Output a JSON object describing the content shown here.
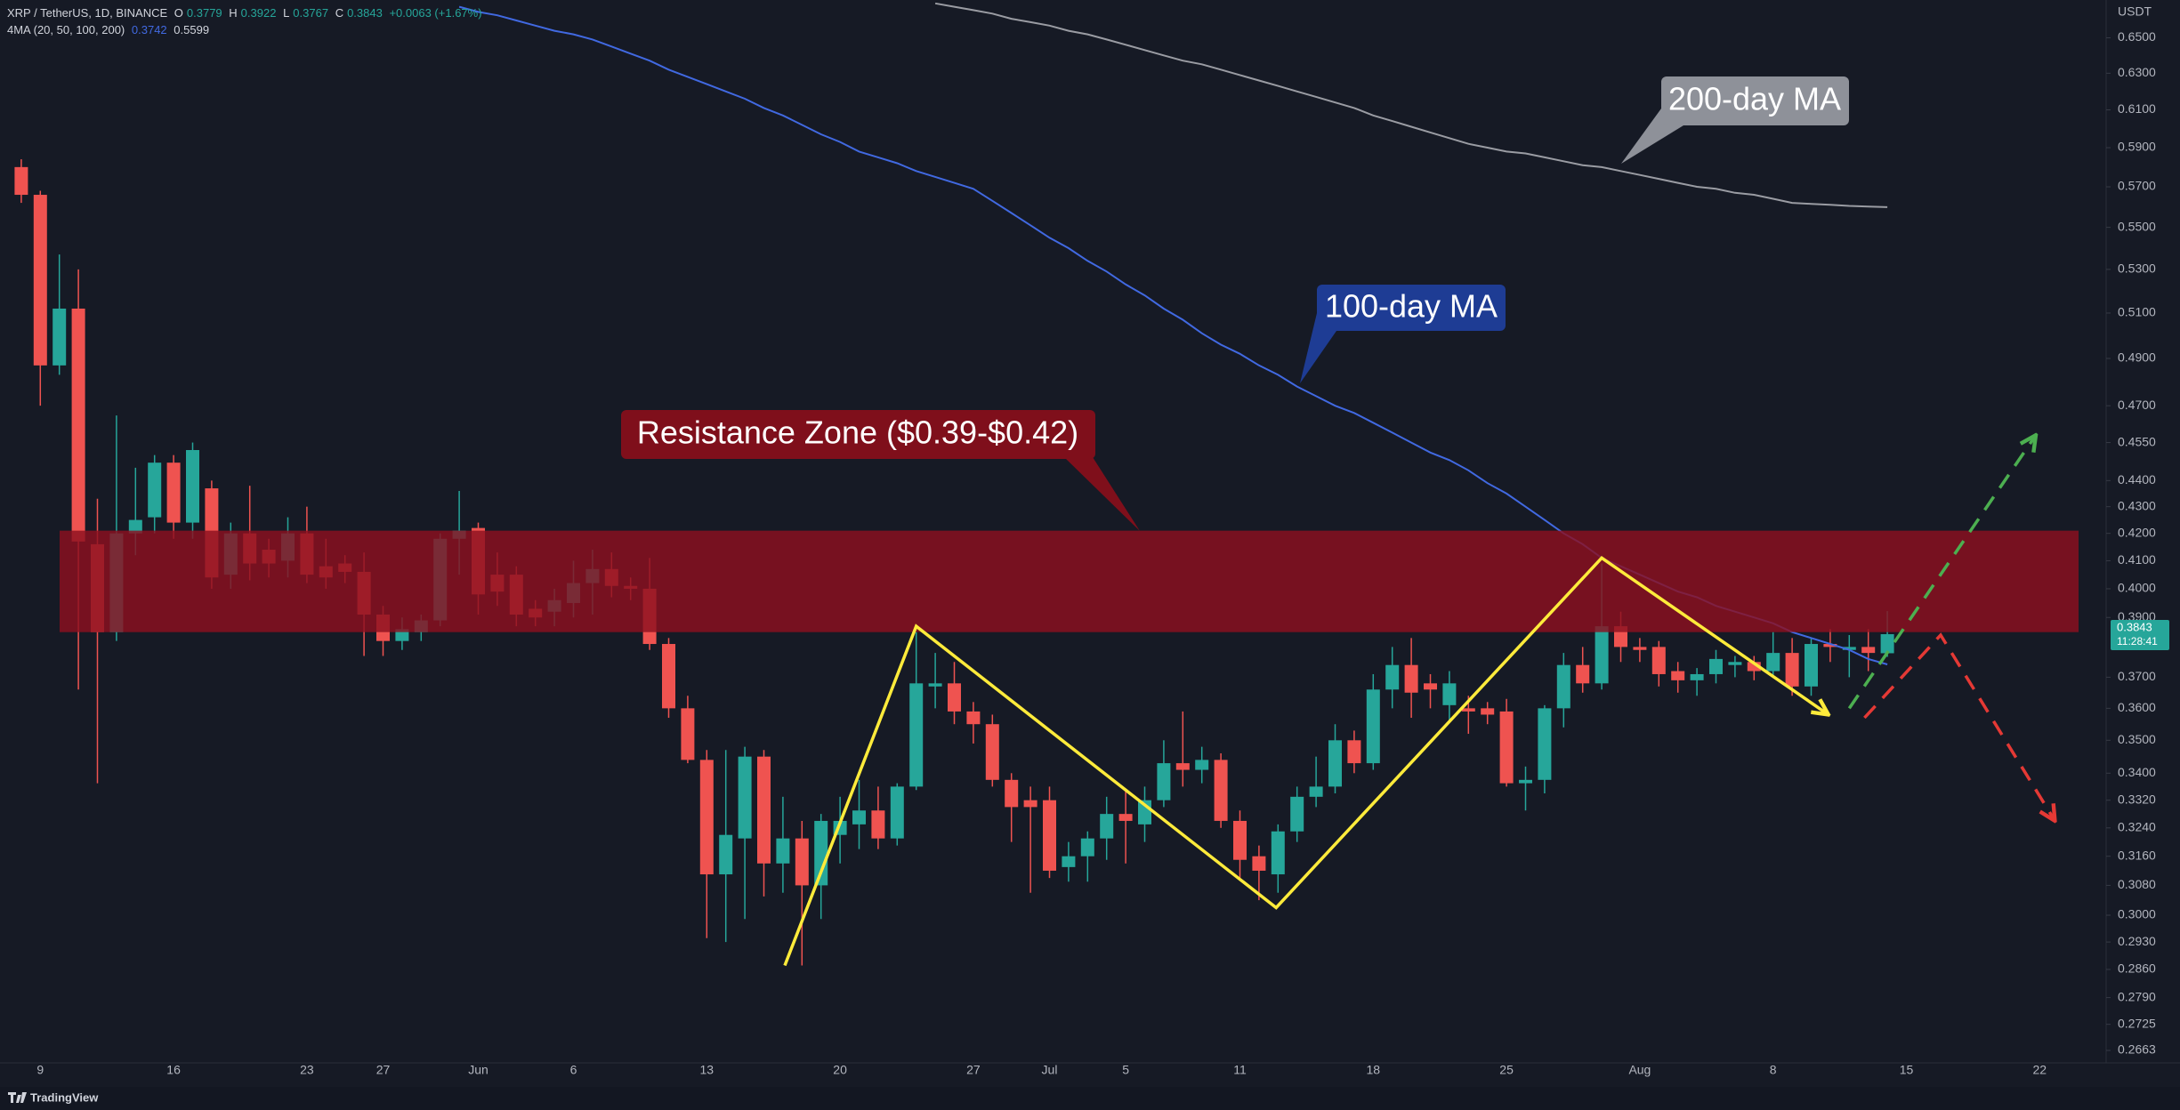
{
  "header": {
    "symbol": "XRP / TetherUS, 1D, BINANCE",
    "ohlc_labels": [
      "O",
      "H",
      "L",
      "C"
    ],
    "change": "+0.0063 (+1.67%)",
    "indicator": "4MA (20, 50, 100, 200)"
  },
  "footer": {
    "brand": "TradingView"
  },
  "chart_data": {
    "type": "candlestick",
    "currency": "USDT",
    "countdown": "11:28:41",
    "log_scale": true,
    "up_color": "#26a69a",
    "down_color": "#ef5350",
    "ylim": [
      0.2634,
      0.672
    ],
    "yticks": [
      {
        "value": 0.65,
        "label": "0.6500"
      },
      {
        "value": 0.63,
        "label": "0.6300"
      },
      {
        "value": 0.61,
        "label": "0.6100"
      },
      {
        "value": 0.59,
        "label": "0.5900"
      },
      {
        "value": 0.57,
        "label": "0.5700"
      },
      {
        "value": 0.55,
        "label": "0.5500"
      },
      {
        "value": 0.53,
        "label": "0.5300"
      },
      {
        "value": 0.51,
        "label": "0.5100"
      },
      {
        "value": 0.49,
        "label": "0.4900"
      },
      {
        "value": 0.47,
        "label": "0.4700"
      },
      {
        "value": 0.455,
        "label": "0.4550"
      },
      {
        "value": 0.44,
        "label": "0.4400"
      },
      {
        "value": 0.43,
        "label": "0.4300"
      },
      {
        "value": 0.42,
        "label": "0.4200"
      },
      {
        "value": 0.41,
        "label": "0.4100"
      },
      {
        "value": 0.4,
        "label": "0.4000"
      },
      {
        "value": 0.39,
        "label": "0.3900"
      },
      {
        "value": 0.37,
        "label": "0.3700"
      },
      {
        "value": 0.36,
        "label": "0.3600"
      },
      {
        "value": 0.35,
        "label": "0.3500"
      },
      {
        "value": 0.34,
        "label": "0.3400"
      },
      {
        "value": 0.332,
        "label": "0.3320"
      },
      {
        "value": 0.324,
        "label": "0.3240"
      },
      {
        "value": 0.316,
        "label": "0.3160"
      },
      {
        "value": 0.308,
        "label": "0.3080"
      },
      {
        "value": 0.3,
        "label": "0.3000"
      },
      {
        "value": 0.293,
        "label": "0.2930"
      },
      {
        "value": 0.286,
        "label": "0.2860"
      },
      {
        "value": 0.279,
        "label": "0.2790"
      },
      0.2725,
      0.2663
    ],
    "categories": [
      null,
      "9",
      null,
      null,
      null,
      null,
      null,
      null,
      "16",
      null,
      null,
      null,
      null,
      null,
      null,
      "23",
      null,
      null,
      null,
      "27",
      null,
      null,
      null,
      null,
      "Jun",
      null,
      null,
      null,
      null,
      "6",
      null,
      null,
      null,
      null,
      null,
      null,
      "13",
      null,
      null,
      null,
      null,
      null,
      null,
      "20",
      null,
      null,
      null,
      null,
      null,
      null,
      "27",
      null,
      null,
      null,
      "Jul",
      null,
      null,
      null,
      "5",
      null,
      null,
      null,
      null,
      null,
      "11",
      null,
      null,
      null,
      null,
      null,
      null,
      "18",
      null,
      null,
      null,
      null,
      null,
      null,
      "25",
      null,
      null,
      null,
      null,
      null,
      null,
      "Aug",
      null,
      null,
      null,
      null,
      null,
      null,
      "8",
      null,
      null,
      null,
      null,
      null,
      null,
      "15",
      null,
      null,
      null,
      null,
      null,
      null,
      "22",
      null,
      null,
      null
    ],
    "candles": {
      "open": [
        0.58,
        0.566,
        0.487,
        0.512,
        0.416,
        0.385,
        0.42,
        0.426,
        0.447,
        0.424,
        0.437,
        0.405,
        0.42,
        0.414,
        0.41,
        0.42,
        0.408,
        0.409,
        0.406,
        0.391,
        0.382,
        0.385,
        0.389,
        0.418,
        0.422,
        0.405,
        0.405,
        0.393,
        0.392,
        0.395,
        0.402,
        0.407,
        0.401,
        0.4,
        0.381,
        0.36,
        0.344,
        0.311,
        0.321,
        0.345,
        0.314,
        0.321,
        0.308,
        0.322,
        0.325,
        0.329,
        0.321,
        0.336,
        0.367,
        0.368,
        0.359,
        0.355,
        0.338,
        0.332,
        0.332,
        0.313,
        0.316,
        0.321,
        0.328,
        0.325,
        0.332,
        0.343,
        0.341,
        0.344,
        0.326,
        0.316,
        0.311,
        0.323,
        0.333,
        0.336,
        0.35,
        0.343,
        0.366,
        0.374,
        0.368,
        0.361,
        0.36,
        0.36,
        0.359,
        0.337,
        0.338,
        0.36,
        0.374,
        0.368,
        0.387,
        0.38,
        0.38,
        0.372,
        0.369,
        0.371,
        0.374,
        0.375,
        0.372,
        0.378,
        0.367,
        0.381,
        0.379,
        0.38,
        0.3779,
        null,
        null,
        null,
        null,
        null,
        null,
        null,
        null,
        null,
        null,
        null
      ],
      "high": [
        0.584,
        0.568,
        0.537,
        0.53,
        0.433,
        0.466,
        0.445,
        0.45,
        0.45,
        0.455,
        0.44,
        0.424,
        0.438,
        0.418,
        0.426,
        0.43,
        0.418,
        0.412,
        0.413,
        0.394,
        0.39,
        0.391,
        0.42,
        0.436,
        0.424,
        0.413,
        0.408,
        0.396,
        0.4,
        0.41,
        0.414,
        0.413,
        0.404,
        0.411,
        0.383,
        0.364,
        0.347,
        0.347,
        0.348,
        0.347,
        0.333,
        0.326,
        0.328,
        0.333,
        0.338,
        0.336,
        0.337,
        0.385,
        0.378,
        0.375,
        0.362,
        0.358,
        0.34,
        0.336,
        0.336,
        0.32,
        0.323,
        0.333,
        0.335,
        0.336,
        0.35,
        0.359,
        0.348,
        0.346,
        0.329,
        0.319,
        0.325,
        0.336,
        0.345,
        0.355,
        0.353,
        0.371,
        0.38,
        0.383,
        0.371,
        0.372,
        0.364,
        0.362,
        0.363,
        0.342,
        0.361,
        0.378,
        0.38,
        0.409,
        0.392,
        0.383,
        0.382,
        0.375,
        0.373,
        0.379,
        0.377,
        0.377,
        0.385,
        0.383,
        0.383,
        0.386,
        0.384,
        0.386,
        0.3922,
        null,
        null,
        null,
        null,
        null,
        null,
        null,
        null,
        null,
        null,
        null
      ],
      "low": [
        0.562,
        0.47,
        0.483,
        0.366,
        0.337,
        0.382,
        0.412,
        0.42,
        0.418,
        0.418,
        0.4,
        0.4,
        0.403,
        0.404,
        0.404,
        0.402,
        0.4,
        0.402,
        0.377,
        0.377,
        0.379,
        0.382,
        0.387,
        0.405,
        0.391,
        0.394,
        0.387,
        0.387,
        0.387,
        0.39,
        0.391,
        0.397,
        0.396,
        0.379,
        0.357,
        0.343,
        0.294,
        0.293,
        0.299,
        0.305,
        0.306,
        0.287,
        0.299,
        0.314,
        0.318,
        0.318,
        0.319,
        0.335,
        0.36,
        0.355,
        0.349,
        0.336,
        0.32,
        0.306,
        0.31,
        0.309,
        0.309,
        0.315,
        0.314,
        0.32,
        0.33,
        0.336,
        0.337,
        0.324,
        0.31,
        0.304,
        0.306,
        0.32,
        0.33,
        0.334,
        0.34,
        0.341,
        0.36,
        0.357,
        0.36,
        0.356,
        0.352,
        0.355,
        0.336,
        0.329,
        0.334,
        0.354,
        0.365,
        0.366,
        0.375,
        0.375,
        0.367,
        0.365,
        0.364,
        0.368,
        0.37,
        0.369,
        0.37,
        0.364,
        0.364,
        0.375,
        0.37,
        0.372,
        0.3767,
        null,
        null,
        null,
        null,
        null,
        null,
        null,
        null,
        null,
        null,
        null
      ],
      "close": [
        0.566,
        0.487,
        0.512,
        0.417,
        0.385,
        0.42,
        0.425,
        0.447,
        0.424,
        0.452,
        0.404,
        0.42,
        0.409,
        0.409,
        0.42,
        0.405,
        0.404,
        0.406,
        0.391,
        0.382,
        0.386,
        0.389,
        0.418,
        0.421,
        0.398,
        0.399,
        0.391,
        0.39,
        0.396,
        0.402,
        0.407,
        0.401,
        0.4,
        0.381,
        0.36,
        0.344,
        0.311,
        0.322,
        0.345,
        0.314,
        0.321,
        0.308,
        0.326,
        0.326,
        0.329,
        0.321,
        0.336,
        0.368,
        0.368,
        0.359,
        0.355,
        0.338,
        0.33,
        0.33,
        0.312,
        0.316,
        0.321,
        0.328,
        0.326,
        0.332,
        0.343,
        0.341,
        0.344,
        0.326,
        0.315,
        0.312,
        0.323,
        0.333,
        0.336,
        0.35,
        0.343,
        0.366,
        0.374,
        0.365,
        0.366,
        0.368,
        0.359,
        0.358,
        0.337,
        0.338,
        0.36,
        0.374,
        0.368,
        0.387,
        0.38,
        0.379,
        0.371,
        0.369,
        0.371,
        0.376,
        0.375,
        0.372,
        0.378,
        0.367,
        0.381,
        0.38,
        0.38,
        0.378,
        0.3843,
        null,
        null,
        null,
        null,
        null,
        null,
        null,
        null,
        null,
        null,
        null
      ]
    },
    "moving_averages": [
      {
        "name": "100-day MA",
        "color": "#4169e1",
        "box_color": "#1e3c94",
        "values": [
          null,
          null,
          null,
          null,
          null,
          null,
          null,
          null,
          null,
          null,
          null,
          null,
          null,
          null,
          null,
          null,
          null,
          null,
          null,
          null,
          null,
          null,
          null,
          0.668,
          0.665,
          0.663,
          0.66,
          0.657,
          0.654,
          0.652,
          0.649,
          0.645,
          0.641,
          0.637,
          0.632,
          0.628,
          0.624,
          0.62,
          0.616,
          0.611,
          0.607,
          0.602,
          0.597,
          0.593,
          0.588,
          0.585,
          0.582,
          0.578,
          0.575,
          0.572,
          0.569,
          0.563,
          0.557,
          0.551,
          0.545,
          0.54,
          0.534,
          0.529,
          0.523,
          0.518,
          0.512,
          0.507,
          0.501,
          0.496,
          0.492,
          0.487,
          0.483,
          0.478,
          0.474,
          0.47,
          0.467,
          0.463,
          0.459,
          0.455,
          0.451,
          0.448,
          0.444,
          0.439,
          0.435,
          0.43,
          0.425,
          0.42,
          0.416,
          0.411,
          0.408,
          0.405,
          0.402,
          0.399,
          0.397,
          0.394,
          0.392,
          0.39,
          0.388,
          0.385,
          0.383,
          0.381,
          0.379,
          0.376,
          0.3742,
          null,
          null,
          null,
          null,
          null,
          null,
          null,
          null,
          null,
          null,
          null
        ]
      },
      {
        "name": "200-day MA",
        "color": "#9a9ca3",
        "box_color": "#8e9199",
        "values": [
          null,
          null,
          null,
          null,
          null,
          null,
          null,
          null,
          null,
          null,
          null,
          null,
          null,
          null,
          null,
          null,
          null,
          null,
          null,
          null,
          null,
          null,
          null,
          null,
          null,
          null,
          null,
          null,
          null,
          null,
          null,
          null,
          null,
          null,
          null,
          null,
          null,
          null,
          null,
          null,
          null,
          null,
          null,
          null,
          null,
          null,
          null,
          null,
          0.67,
          0.668,
          0.666,
          0.664,
          0.661,
          0.659,
          0.657,
          0.654,
          0.652,
          0.649,
          0.646,
          0.643,
          0.64,
          0.637,
          0.635,
          0.632,
          0.629,
          0.626,
          0.623,
          0.62,
          0.617,
          0.614,
          0.611,
          0.607,
          0.604,
          0.601,
          0.598,
          0.595,
          0.592,
          0.59,
          0.588,
          0.587,
          0.585,
          0.583,
          0.581,
          0.58,
          0.578,
          0.576,
          0.574,
          0.572,
          0.57,
          0.569,
          0.567,
          0.566,
          0.564,
          0.562,
          0.5615,
          0.561,
          0.5605,
          0.5602,
          0.5599,
          null,
          null,
          null,
          null,
          null,
          null,
          null,
          null,
          null,
          null,
          null
        ]
      }
    ],
    "resistance_zone": {
      "label": "Resistance Zone ($0.39-$0.42)",
      "low": 0.385,
      "high": 0.421,
      "color": "#8c1020",
      "box_color": "#7f0f1b"
    },
    "drawings": [
      {
        "color": "#ffeb3b",
        "dashed": false,
        "x": [
          40.1,
          47,
          65.9,
          83,
          94.9
        ],
        "y": [
          0.287,
          0.387,
          0.302,
          0.411,
          0.358
        ]
      },
      {
        "color": "#4caf50",
        "dashed": true,
        "x": [
          96,
          105.8
        ],
        "y": [
          0.36,
          0.458
        ]
      },
      {
        "color": "#e53935",
        "dashed": true,
        "x": [
          96.8,
          100.8,
          106.8
        ],
        "y": [
          0.357,
          0.384,
          0.326
        ]
      }
    ]
  }
}
